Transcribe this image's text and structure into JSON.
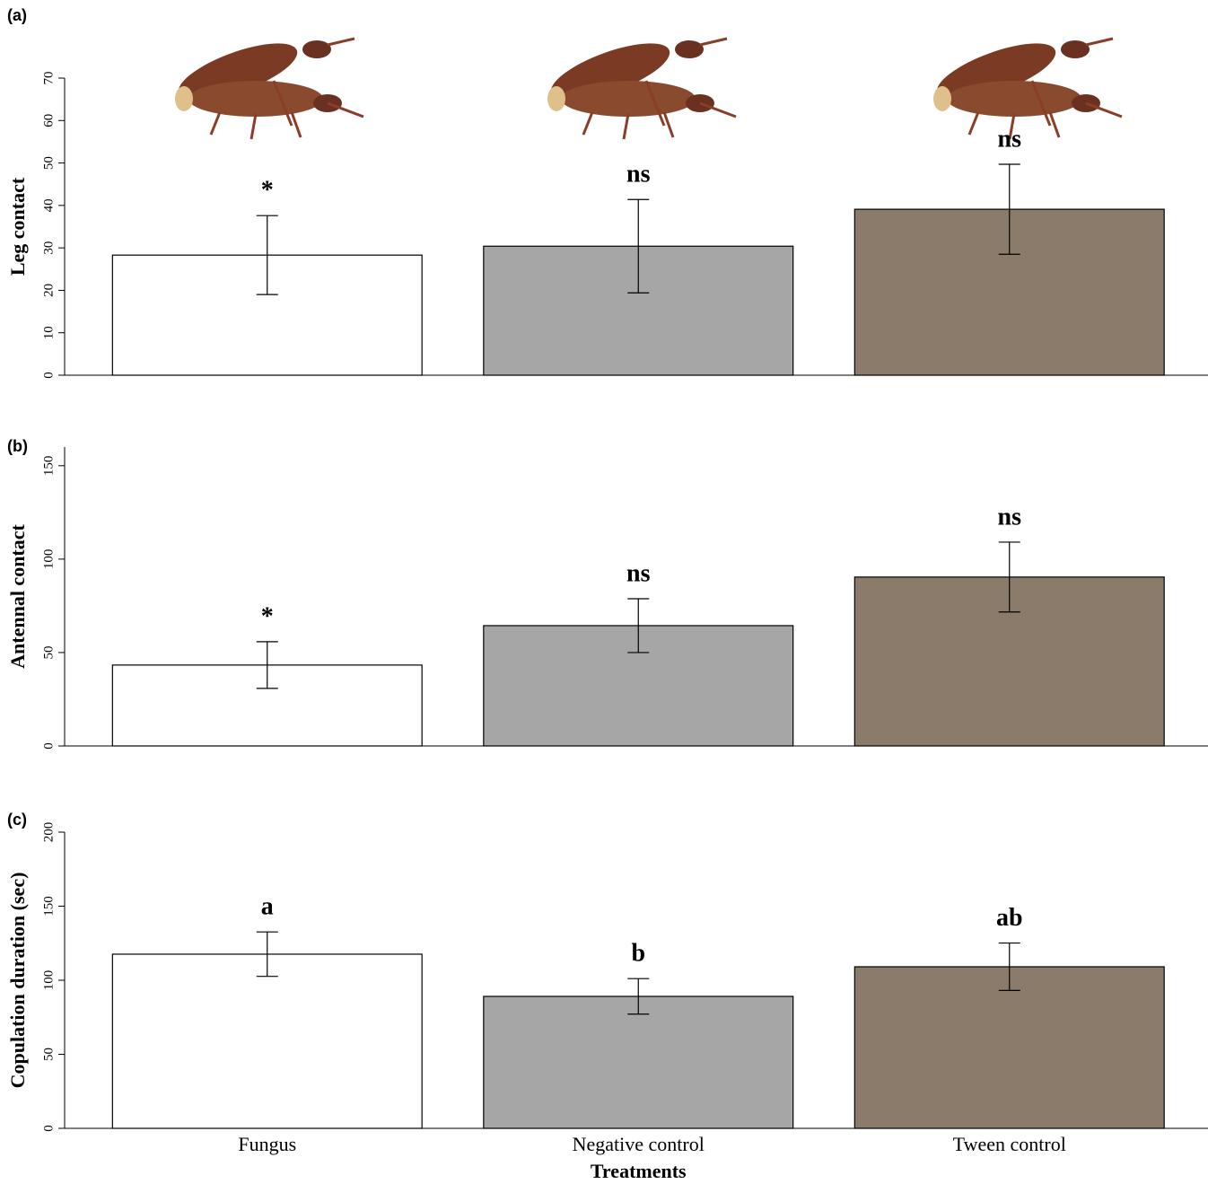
{
  "chart_data": [
    {
      "type": "bar",
      "panel_label": "(a)",
      "ylabel": "Leg contact",
      "values": [
        28.3,
        30.4,
        39.1
      ],
      "errors": [
        9.3,
        11,
        10.6
      ],
      "annotations": [
        "*",
        "ns",
        "ns"
      ],
      "colors": [
        "#ffffff",
        "#a6a6a6",
        "#8b7b6a"
      ],
      "ylim": [
        0,
        70
      ],
      "yticks": [
        0,
        10,
        20,
        30,
        40,
        50,
        60,
        70
      ]
    },
    {
      "type": "bar",
      "panel_label": "(b)",
      "ylabel": "Antennal contact",
      "values": [
        43.3,
        64.4,
        90.4
      ],
      "errors": [
        12.5,
        14.4,
        18.7
      ],
      "annotations": [
        "*",
        "ns",
        "ns"
      ],
      "colors": [
        "#ffffff",
        "#a6a6a6",
        "#8b7b6a"
      ],
      "ylim": [
        0,
        160
      ],
      "yticks": [
        0,
        50,
        100,
        150
      ]
    },
    {
      "type": "bar",
      "panel_label": "(c)",
      "ylabel": "Copulation duration (sec)",
      "xlabel": "Treatments",
      "categories": [
        "Fungus",
        "Negative control",
        "Tween control"
      ],
      "values": [
        117.6,
        89.1,
        109.1
      ],
      "errors": [
        15,
        12,
        16
      ],
      "annotations": [
        "a",
        "b",
        "ab"
      ],
      "colors": [
        "#ffffff",
        "#a6a6a6",
        "#8b7b6a"
      ],
      "ylim": [
        0,
        200
      ],
      "yticks": [
        0,
        50,
        100,
        150,
        200
      ]
    }
  ]
}
